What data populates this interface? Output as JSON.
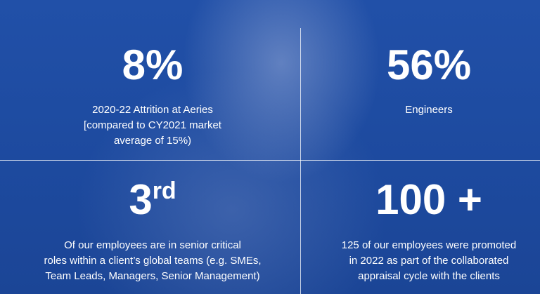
{
  "quadrants": [
    {
      "stat": "8%",
      "lines": [
        "2020-22 Attrition at Aeries",
        "[compared to CY2021 market",
        "average of 15%)"
      ]
    },
    {
      "stat": "56%",
      "lines": [
        "Engineers"
      ]
    },
    {
      "stat": "3",
      "stat_suffix": "rd",
      "lines": [
        "Of our employees are in senior critical",
        "roles  within a client’s global teams (e.g. SMEs,",
        "Team Leads, Managers, Senior Management)"
      ]
    },
    {
      "stat": "100 +",
      "lines": [
        "125 of our employees were promoted",
        "in 2022 as part of the collaborated",
        "appraisal cycle with the clients"
      ]
    }
  ]
}
